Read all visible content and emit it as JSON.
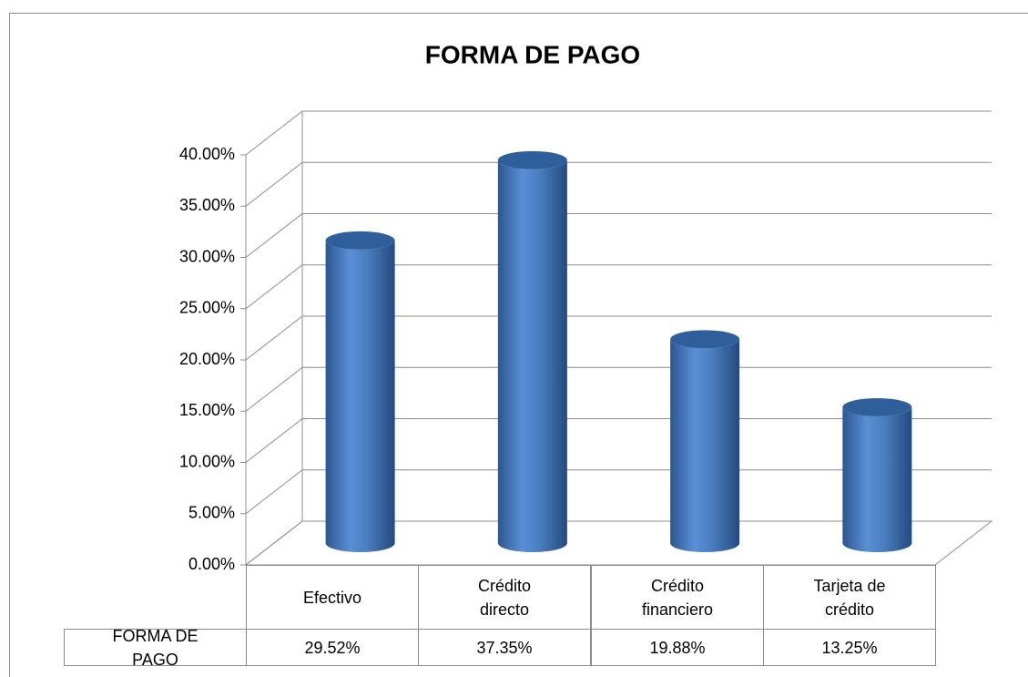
{
  "chart_data": {
    "type": "bar",
    "title": "FORMA DE PAGO",
    "categories": [
      "Efectivo",
      "Crédito directo",
      "Crédito financiero",
      "Tarjeta de crédito"
    ],
    "series": [
      {
        "name": "FORMA DE PAGO",
        "color": "#4a7ebf",
        "values": [
          29.52,
          37.35,
          19.88,
          13.25
        ],
        "value_labels": [
          "29.52%",
          "37.35%",
          "19.88%",
          "13.25%"
        ]
      }
    ],
    "ylim": [
      0,
      40
    ],
    "yticks": [
      {
        "value": 0,
        "label": "0.00%"
      },
      {
        "value": 5,
        "label": "5.00%"
      },
      {
        "value": 10,
        "label": "10.00%"
      },
      {
        "value": 15,
        "label": "15.00%"
      },
      {
        "value": 20,
        "label": "20.00%"
      },
      {
        "value": 25,
        "label": "25.00%"
      },
      {
        "value": 30,
        "label": "30.00%"
      },
      {
        "value": 35,
        "label": "35.00%"
      },
      {
        "value": 40,
        "label": "40.00%"
      }
    ],
    "grid": true
  }
}
